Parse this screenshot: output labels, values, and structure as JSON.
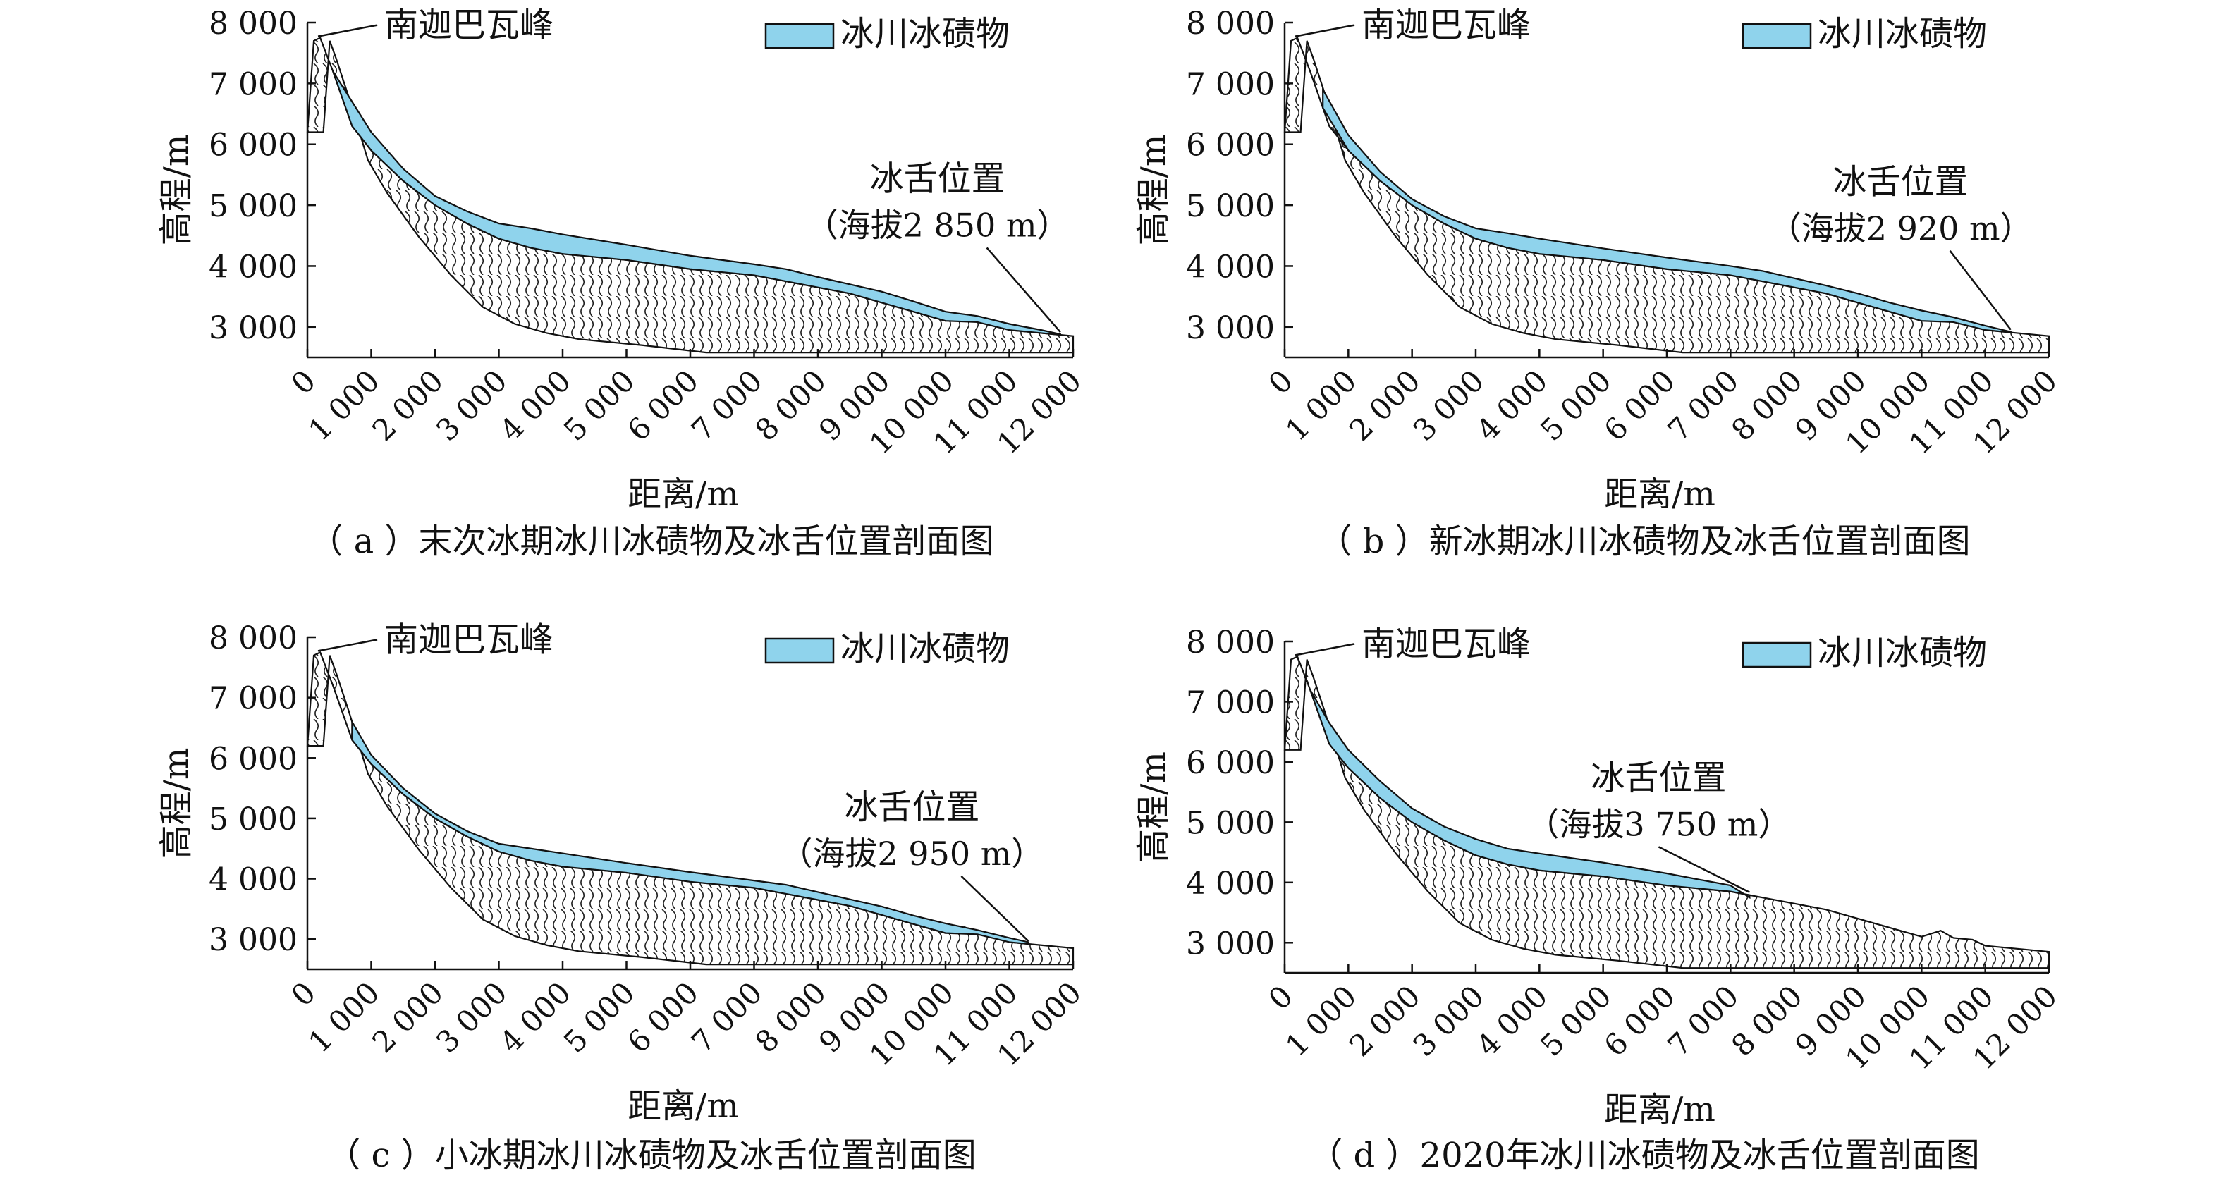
{
  "figure": {
    "legend_label": "冰川冰碛物",
    "peak_label": "南迦巴瓦峰",
    "terminus_label": "冰舌位置",
    "colors": {
      "moraine": "#8fd3ec",
      "outline": "#111111",
      "hatch": "#222222"
    }
  },
  "chart_data": [
    {
      "panel": "a",
      "type": "area",
      "caption": "（ a ）末次冰期冰川冰碛物及冰舌位置剖面图",
      "xlabel": "距离/m",
      "ylabel": "高程/m",
      "x_ticks": [
        "0",
        "1 000",
        "2 000",
        "3 000",
        "4 000",
        "5 000",
        "6 000",
        "7 000",
        "8 000",
        "9 000",
        "10 000",
        "11 000",
        "12 000"
      ],
      "y_ticks": [
        "3 000",
        "4 000",
        "5 000",
        "6 000",
        "7 000",
        "8 000"
      ],
      "xlim": [
        0,
        12000
      ],
      "ylim": [
        2500,
        8000
      ],
      "legend_position": "top-right",
      "terminus_altitude": "（海拔2 850 m）",
      "terminus_distance": 11800,
      "terminus_label_position": [
        11200,
        5250
      ],
      "bed_profile": {
        "x": [
          0,
          100,
          200,
          400,
          700,
          1000,
          1500,
          2000,
          2500,
          3000,
          3500,
          4000,
          5000,
          6000,
          7000,
          8000,
          8500,
          9000,
          9500,
          10000,
          10300,
          10500,
          10800,
          11000,
          11500,
          12000
        ],
        "y": [
          6200,
          7700,
          7750,
          7200,
          6300,
          5900,
          5400,
          5000,
          4700,
          4450,
          4300,
          4200,
          4100,
          3950,
          3850,
          3650,
          3550,
          3400,
          3250,
          3100,
          3200,
          3080,
          3050,
          2950,
          2900,
          2850
        ]
      },
      "moraine": {
        "x": [
          400,
          700,
          1000,
          1500,
          2000,
          2500,
          3000,
          3500,
          4000,
          5000,
          6000,
          7000,
          7500,
          8000,
          8500,
          9000,
          9500,
          10000,
          10500,
          11000,
          11500,
          11800
        ],
        "y": [
          7200,
          6700,
          6200,
          5600,
          5150,
          4900,
          4700,
          4620,
          4520,
          4350,
          4170,
          4030,
          3950,
          3820,
          3700,
          3580,
          3420,
          3250,
          3180,
          3050,
          2950,
          2880
        ]
      }
    },
    {
      "panel": "b",
      "type": "area",
      "caption": "（ b ）新冰期冰川冰碛物及冰舌位置剖面图",
      "xlabel": "距离/m",
      "ylabel": "高程/m",
      "x_ticks": [
        "0",
        "1 000",
        "2 000",
        "3 000",
        "4 000",
        "5 000",
        "6 000",
        "7 000",
        "8 000",
        "9 000",
        "10 000",
        "11 000",
        "12 000"
      ],
      "y_ticks": [
        "3 000",
        "4 000",
        "5 000",
        "6 000",
        "7 000",
        "8 000"
      ],
      "xlim": [
        0,
        12000
      ],
      "ylim": [
        2500,
        8000
      ],
      "legend_position": "top-right",
      "terminus_altitude": "（海拔2 920 m）",
      "terminus_distance": 11400,
      "terminus_label_position": [
        11000,
        5200
      ],
      "bed_profile": {
        "x": [
          0,
          100,
          200,
          400,
          700,
          1000,
          1500,
          2000,
          2500,
          3000,
          3500,
          4000,
          5000,
          6000,
          7000,
          8000,
          8500,
          9000,
          9500,
          10000,
          10300,
          10500,
          10800,
          11000,
          11500,
          12000
        ],
        "y": [
          6200,
          7700,
          7750,
          7200,
          6300,
          5900,
          5400,
          5000,
          4700,
          4450,
          4300,
          4200,
          4100,
          3950,
          3850,
          3650,
          3550,
          3400,
          3250,
          3100,
          3200,
          3080,
          3050,
          2950,
          2900,
          2850
        ]
      },
      "moraine": {
        "x": [
          600,
          1000,
          1500,
          2000,
          2500,
          3000,
          3500,
          4000,
          5000,
          6000,
          7000,
          7500,
          8000,
          8500,
          9000,
          9500,
          10000,
          10500,
          11000,
          11400
        ],
        "y": [
          6900,
          6150,
          5550,
          5100,
          4820,
          4620,
          4540,
          4450,
          4290,
          4140,
          4000,
          3920,
          3800,
          3680,
          3550,
          3400,
          3270,
          3160,
          3020,
          2920
        ]
      }
    },
    {
      "panel": "c",
      "type": "area",
      "caption": "（ c ）小冰期冰川冰碛物及冰舌位置剖面图",
      "xlabel": "距离/m",
      "ylabel": "高程/m",
      "x_ticks": [
        "0",
        "1 000",
        "2 000",
        "3 000",
        "4 000",
        "5 000",
        "6 000",
        "7 000",
        "8 000",
        "9 000",
        "10 000",
        "11 000",
        "12 000"
      ],
      "y_ticks": [
        "3 000",
        "4 000",
        "5 000",
        "6 000",
        "7 000",
        "8 000"
      ],
      "xlim": [
        0,
        12000
      ],
      "ylim": [
        2500,
        8000
      ],
      "legend_position": "top-right",
      "terminus_altitude": "（海拔2 950 m）",
      "terminus_distance": 11300,
      "terminus_label_position": [
        10800,
        5000
      ],
      "bed_profile": {
        "x": [
          0,
          100,
          200,
          400,
          700,
          1000,
          1500,
          2000,
          2500,
          3000,
          3500,
          4000,
          5000,
          6000,
          7000,
          8000,
          8500,
          9000,
          9500,
          10000,
          10300,
          10500,
          10800,
          11000,
          11500,
          12000
        ],
        "y": [
          6200,
          7700,
          7750,
          7200,
          6300,
          5900,
          5400,
          5000,
          4700,
          4450,
          4300,
          4200,
          4100,
          3950,
          3850,
          3650,
          3550,
          3400,
          3250,
          3100,
          3200,
          3080,
          3050,
          2950,
          2900,
          2850
        ]
      },
      "moraine": {
        "x": [
          700,
          1000,
          1500,
          2000,
          2500,
          3000,
          3500,
          4000,
          5000,
          6000,
          7000,
          7500,
          8000,
          8500,
          9000,
          9500,
          10000,
          10500,
          11000,
          11300
        ],
        "y": [
          6600,
          6050,
          5500,
          5080,
          4790,
          4580,
          4500,
          4420,
          4260,
          4110,
          3970,
          3900,
          3780,
          3660,
          3540,
          3390,
          3260,
          3150,
          3020,
          2950
        ]
      }
    },
    {
      "panel": "d",
      "type": "area",
      "caption": "（ d ）2020年冰川冰碛物及冰舌位置剖面图",
      "xlabel": "距离/m",
      "ylabel": "高程/m",
      "x_ticks": [
        "0",
        "1 000",
        "2 000",
        "3 000",
        "4 000",
        "5 000",
        "6 000",
        "7 000",
        "8 000",
        "9 000",
        "10 000",
        "11 000",
        "12 000"
      ],
      "y_ticks": [
        "3 000",
        "4 000",
        "5 000",
        "6 000",
        "7 000",
        "8 000"
      ],
      "xlim": [
        0,
        12000
      ],
      "ylim": [
        2500,
        8000
      ],
      "legend_position": "top-right",
      "terminus_altitude": "（海拔3 750 m）",
      "terminus_distance": 7300,
      "terminus_label_position": [
        7200,
        5550
      ],
      "bed_profile": {
        "x": [
          0,
          100,
          200,
          400,
          700,
          1000,
          1500,
          2000,
          2500,
          3000,
          3500,
          4000,
          5000,
          6000,
          7000,
          8000,
          8500,
          9000,
          9500,
          10000,
          10300,
          10500,
          10800,
          11000,
          11500,
          12000
        ],
        "y": [
          6200,
          7700,
          7750,
          7200,
          6300,
          5900,
          5400,
          5000,
          4700,
          4450,
          4300,
          4200,
          4100,
          3950,
          3850,
          3650,
          3550,
          3400,
          3250,
          3100,
          3200,
          3080,
          3050,
          2950,
          2900,
          2850
        ]
      },
      "moraine": {
        "x": [
          400,
          700,
          1000,
          1500,
          2000,
          2500,
          3000,
          3500,
          4000,
          5000,
          6000,
          7000,
          7300
        ],
        "y": [
          7200,
          6650,
          6200,
          5680,
          5230,
          4930,
          4720,
          4560,
          4480,
          4330,
          4150,
          3950,
          3750
        ]
      }
    }
  ]
}
